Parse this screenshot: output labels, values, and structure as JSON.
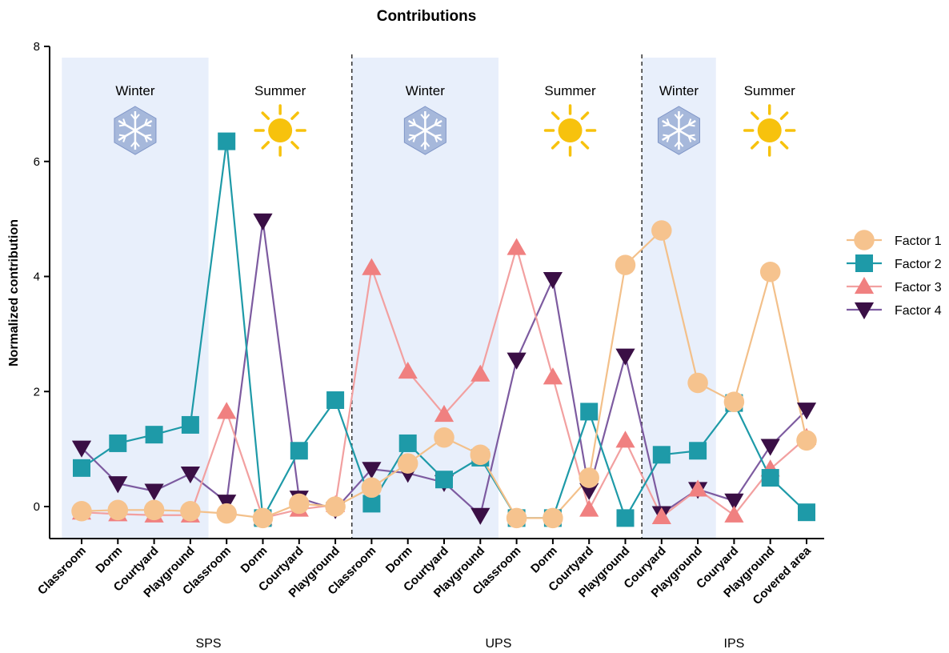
{
  "chart_data": {
    "type": "line",
    "title": "Contributions",
    "xlabel": "",
    "ylabel": "Normalized contribution",
    "ylim": [
      -0.5,
      8
    ],
    "yticks": [
      0,
      2,
      4,
      6,
      8
    ],
    "grid": false,
    "legend_position": "right",
    "categories": [
      "Classroom",
      "Dorm",
      "Courtyard",
      "Playground",
      "Classroom",
      "Dorm",
      "Courtyard",
      "Playground",
      "Classroom",
      "Dorm",
      "Courtyard",
      "Playground",
      "Classroom",
      "Dorm",
      "Courtyard",
      "Playground",
      "Couryard",
      "Playground",
      "Couryard",
      "Playground",
      "Covered area"
    ],
    "groups": [
      {
        "name": "SPS",
        "start": 0,
        "end": 7
      },
      {
        "name": "UPS",
        "start": 8,
        "end": 15
      },
      {
        "name": "IPS",
        "start": 16,
        "end": 20
      }
    ],
    "seasons": [
      {
        "label": "Winter",
        "icon": "snowflake-icon",
        "start": 0,
        "end": 3,
        "shaded": true
      },
      {
        "label": "Summer",
        "icon": "sun-icon",
        "start": 4,
        "end": 7,
        "shaded": false
      },
      {
        "label": "Winter",
        "icon": "snowflake-icon",
        "start": 8,
        "end": 11,
        "shaded": true
      },
      {
        "label": "Summer",
        "icon": "sun-icon",
        "start": 12,
        "end": 15,
        "shaded": false
      },
      {
        "label": "Winter",
        "icon": "snowflake-icon",
        "start": 16,
        "end": 17,
        "shaded": true
      },
      {
        "label": "Summer",
        "icon": "sun-icon",
        "start": 18,
        "end": 20,
        "shaded": false
      }
    ],
    "series": [
      {
        "name": "Factor 1",
        "marker": "circle",
        "color": "#F6C38E",
        "line_color": "#F3C08A",
        "values": [
          -0.08,
          -0.06,
          -0.06,
          -0.08,
          -0.12,
          -0.2,
          0.05,
          0.0,
          0.33,
          0.75,
          1.2,
          0.9,
          -0.2,
          -0.2,
          0.5,
          4.2,
          4.8,
          2.15,
          1.82,
          4.08,
          1.15
        ]
      },
      {
        "name": "Factor 2",
        "marker": "square",
        "color": "#1E9AA8",
        "line_color": "#1E9AA8",
        "values": [
          0.67,
          1.1,
          1.25,
          1.42,
          6.35,
          -0.2,
          0.97,
          1.85,
          0.05,
          1.1,
          0.47,
          0.85,
          -0.2,
          -0.2,
          1.65,
          -0.2,
          0.9,
          0.97,
          1.8,
          0.5,
          -0.1
        ]
      },
      {
        "name": "Factor 3",
        "marker": "triangle-up",
        "color": "#F08080",
        "line_color": "#F2A0A0",
        "values": [
          -0.1,
          -0.13,
          -0.15,
          -0.15,
          1.65,
          -0.2,
          -0.05,
          0.03,
          4.15,
          2.35,
          1.6,
          2.3,
          4.5,
          2.25,
          -0.05,
          1.15,
          -0.18,
          0.3,
          -0.15,
          0.65,
          1.2
        ]
      },
      {
        "name": "Factor 4",
        "marker": "triangle-down",
        "color": "#3A0F45",
        "line_color": "#7D5BA0",
        "values": [
          1.02,
          0.4,
          0.27,
          0.57,
          0.08,
          4.97,
          0.15,
          -0.05,
          0.65,
          0.58,
          0.42,
          -0.15,
          2.55,
          3.95,
          0.28,
          2.62,
          -0.12,
          0.3,
          0.1,
          1.05,
          1.68
        ]
      }
    ],
    "colors": {
      "shade": "#E8EFFB",
      "sun": "#F7C20D",
      "snowflake": "#A6B8DB",
      "divider": "#333333"
    }
  }
}
